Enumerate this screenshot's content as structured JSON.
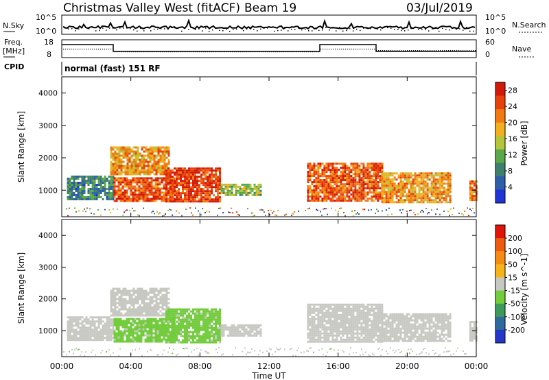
{
  "header": {
    "title": "Christmas Valley West (fitACF)",
    "beam": "Beam 19",
    "date": "03/Jul/2019"
  },
  "noise_panel": {
    "left_label": "N.Sky",
    "left_ticks": [
      "10^5",
      "10^0"
    ],
    "right_label": "N.Search",
    "right_ticks": [
      "10^5",
      "10^0"
    ]
  },
  "freq_panel": {
    "left_label_line1": "Freq.",
    "left_label_line2": "[MHz]",
    "left_ticks": [
      "18",
      "8"
    ],
    "right_label": "Nave",
    "right_ticks": [
      "60",
      "0"
    ]
  },
  "cpid": {
    "label": "CPID",
    "value": "normal (fast) 151 RF"
  },
  "chart_data": [
    {
      "type": "heatmap",
      "title": "",
      "xlabel": "Time UT",
      "ylabel": "Slant Range [km]",
      "x_ticks": [
        "00:00",
        "04:00",
        "08:00",
        "12:00",
        "16:00",
        "20:00",
        "00:00"
      ],
      "xlim_hours": [
        0,
        24
      ],
      "y_ticks": [
        "1000",
        "2000",
        "3000",
        "4000"
      ],
      "ylim_km": [
        180,
        4500
      ],
      "colorbar": {
        "label": "Power [dB]",
        "ticks": [
          "4",
          "8",
          "12",
          "16",
          "20",
          "24",
          "28"
        ],
        "range": [
          0,
          30
        ],
        "colors": [
          "#1f35d6",
          "#2f5fa8",
          "#3f7f6e",
          "#5aa84a",
          "#b4c53c",
          "#f2b01e",
          "#f27a12",
          "#e8420c",
          "#d21a08"
        ]
      },
      "echo_regions": [
        {
          "t_start": 0.3,
          "t_end": 3.0,
          "r_min": 700,
          "r_max": 1450,
          "power_db": 8
        },
        {
          "t_start": 2.8,
          "t_end": 6.2,
          "r_min": 1500,
          "r_max": 2350,
          "power_db": 20
        },
        {
          "t_start": 3.0,
          "t_end": 6.5,
          "r_min": 650,
          "r_max": 1400,
          "power_db": 24
        },
        {
          "t_start": 6.0,
          "t_end": 9.2,
          "r_min": 650,
          "r_max": 1700,
          "power_db": 26
        },
        {
          "t_start": 9.2,
          "t_end": 11.5,
          "r_min": 850,
          "r_max": 1200,
          "power_db": 14
        },
        {
          "t_start": 14.2,
          "t_end": 18.5,
          "r_min": 650,
          "r_max": 1850,
          "power_db": 24
        },
        {
          "t_start": 18.5,
          "t_end": 22.5,
          "r_min": 650,
          "r_max": 1550,
          "power_db": 20
        },
        {
          "t_start": 23.6,
          "t_end": 24.0,
          "r_min": 700,
          "r_max": 1300,
          "power_db": 22
        }
      ]
    },
    {
      "type": "heatmap",
      "title": "",
      "xlabel": "Time UT",
      "ylabel": "Slant Range [km]",
      "x_ticks": [
        "00:00",
        "04:00",
        "08:00",
        "12:00",
        "16:00",
        "20:00",
        "00:00"
      ],
      "xlim_hours": [
        0,
        24
      ],
      "y_ticks": [
        "1000",
        "2000",
        "3000",
        "4000"
      ],
      "ylim_km": [
        180,
        4500
      ],
      "colorbar": {
        "label": "Velocity [m s^-1]",
        "ticks": [
          "200",
          "100",
          "50",
          "15",
          "-15",
          "-50",
          "-100",
          "-200"
        ],
        "range": [
          -250,
          250
        ],
        "colors": [
          "#2636c8",
          "#2f6a9c",
          "#3e9a5a",
          "#72cc3c",
          "#c8c8c2",
          "#f6b41a",
          "#f58b14",
          "#ee5a10",
          "#e01408"
        ]
      },
      "echo_regions": [
        {
          "t_start": 0.3,
          "t_end": 3.0,
          "r_min": 700,
          "r_max": 1450,
          "velocity": 0
        },
        {
          "t_start": 2.8,
          "t_end": 6.2,
          "r_min": 1500,
          "r_max": 2350,
          "velocity": 0
        },
        {
          "t_start": 3.0,
          "t_end": 6.5,
          "r_min": 650,
          "r_max": 1400,
          "velocity": -40
        },
        {
          "t_start": 6.0,
          "t_end": 9.2,
          "r_min": 650,
          "r_max": 1700,
          "velocity": -40
        },
        {
          "t_start": 9.2,
          "t_end": 11.5,
          "r_min": 850,
          "r_max": 1200,
          "velocity": 0
        },
        {
          "t_start": 14.2,
          "t_end": 18.5,
          "r_min": 650,
          "r_max": 1850,
          "velocity": 0
        },
        {
          "t_start": 18.5,
          "t_end": 22.5,
          "r_min": 650,
          "r_max": 1550,
          "velocity": 0
        },
        {
          "t_start": 23.6,
          "t_end": 24.0,
          "r_min": 700,
          "r_max": 1300,
          "velocity": 0
        }
      ]
    }
  ]
}
